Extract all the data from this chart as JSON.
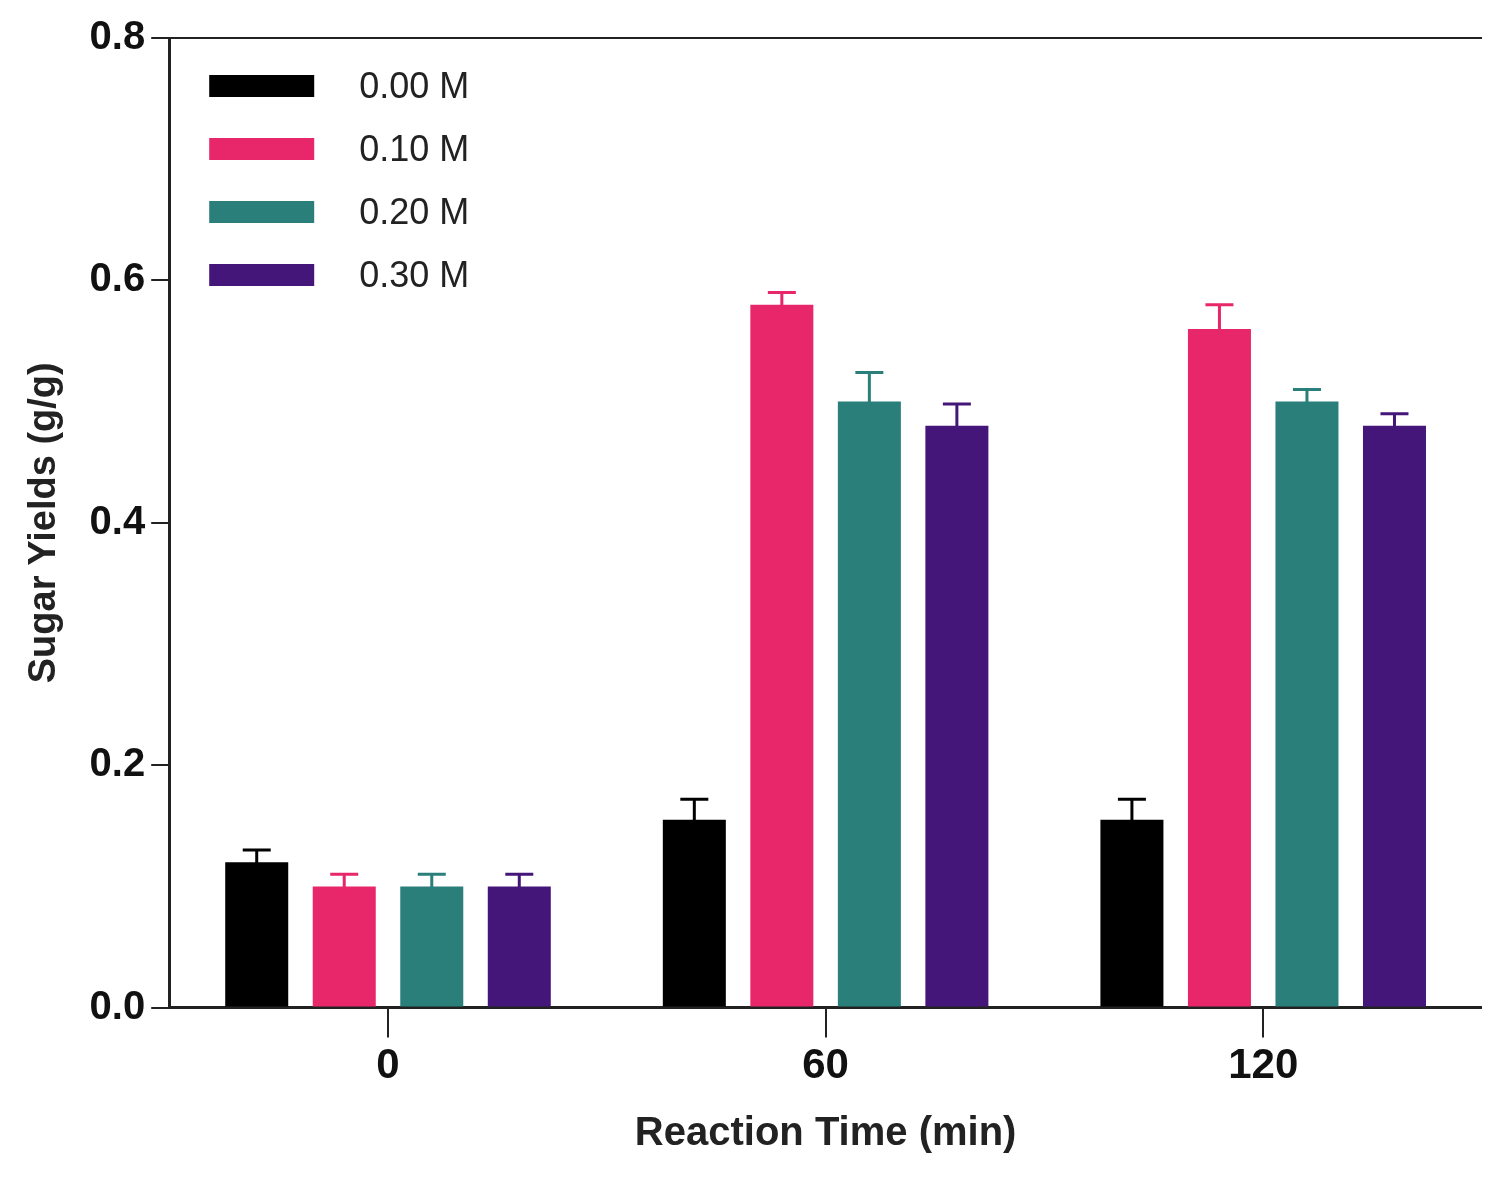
{
  "chart_data": {
    "type": "bar",
    "xlabel": "Reaction Time (min)",
    "ylabel": "Sugar Yields (g/g)",
    "categories": [
      "0",
      "60",
      "120"
    ],
    "series": [
      {
        "name": "0.00 M",
        "color": "#000000",
        "values": [
          0.12,
          0.155,
          0.155
        ],
        "errors": [
          0.01,
          0.017,
          0.017
        ]
      },
      {
        "name": "0.10 M",
        "color": "#e8266a",
        "values": [
          0.1,
          0.58,
          0.56
        ],
        "errors": [
          0.01,
          0.01,
          0.02
        ]
      },
      {
        "name": "0.20 M",
        "color": "#2a7f7b",
        "values": [
          0.1,
          0.5,
          0.5
        ],
        "errors": [
          0.01,
          0.024,
          0.01
        ]
      },
      {
        "name": "0.30 M",
        "color": "#45167a",
        "values": [
          0.1,
          0.48,
          0.48
        ],
        "errors": [
          0.01,
          0.018,
          0.01
        ]
      }
    ],
    "ylim": [
      0,
      0.8
    ],
    "yticks": [
      {
        "value": 0,
        "label": "0.0"
      },
      0.2,
      0.4,
      0.6,
      0.8
    ],
    "grid": false,
    "legend": "top left"
  }
}
